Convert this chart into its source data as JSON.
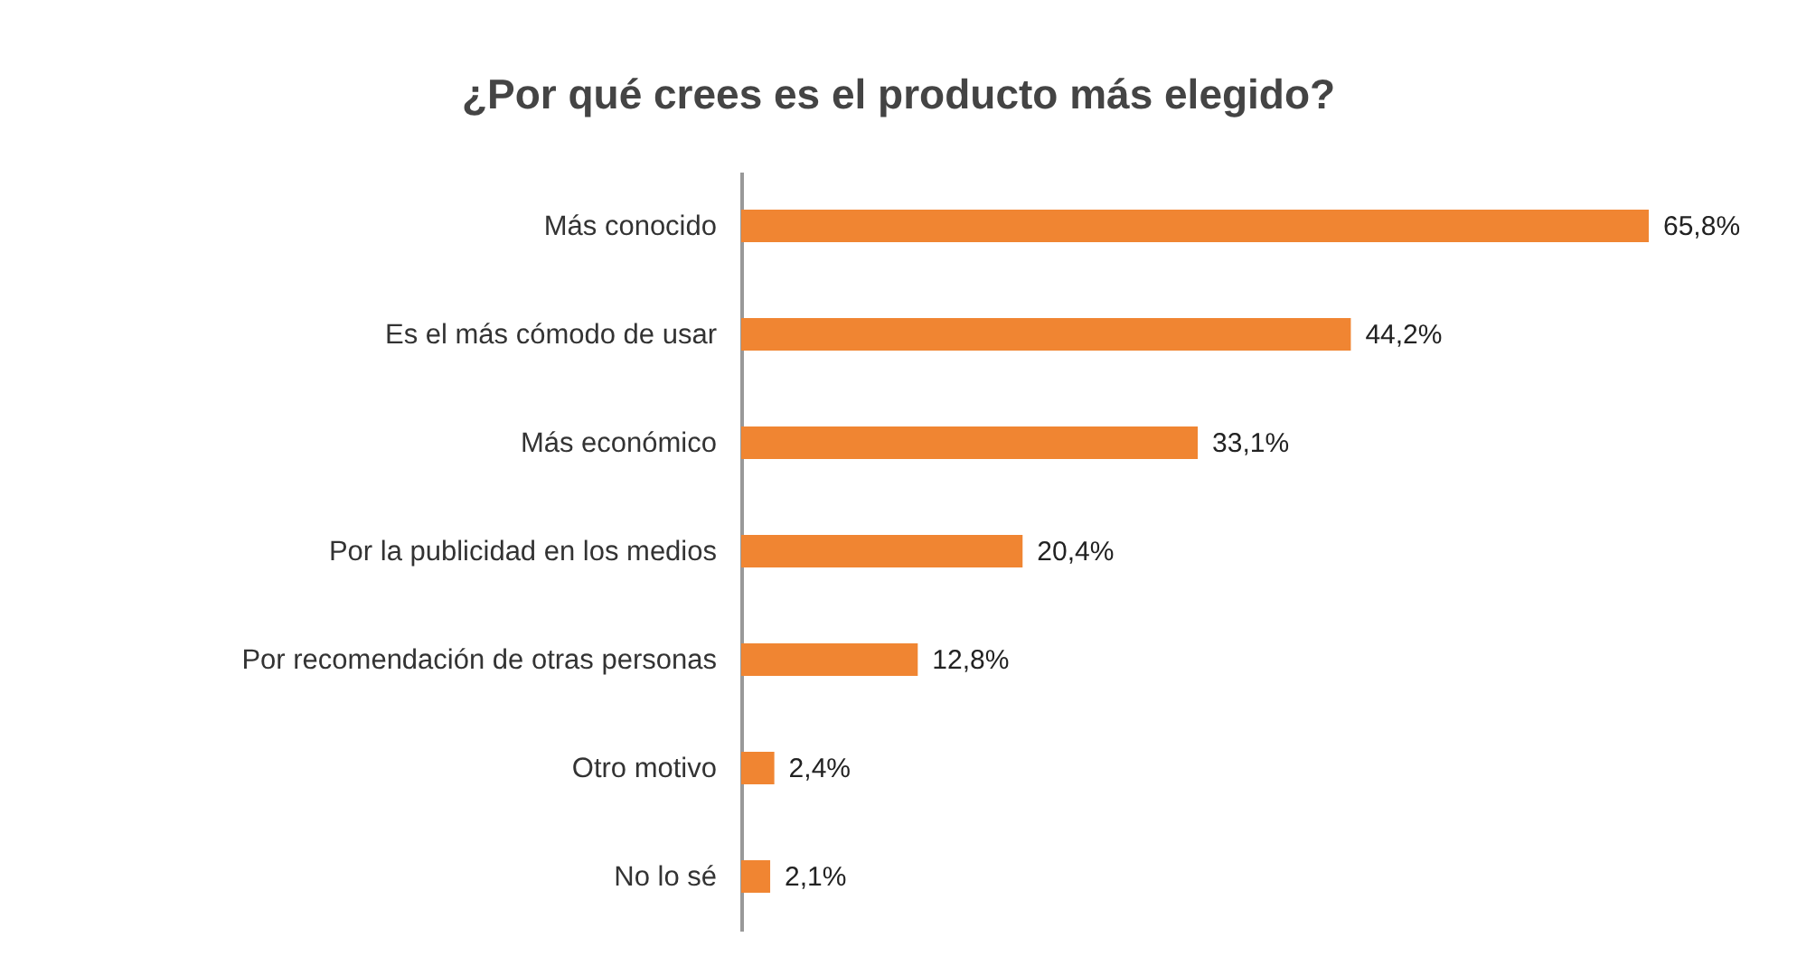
{
  "chart_data": {
    "type": "bar",
    "orientation": "horizontal",
    "title": "¿Por qué crees es el producto más elegido?",
    "categories": [
      "Más conocido",
      "Es el más cómodo de usar",
      "Más económico",
      "Por la publicidad en los medios",
      "Por recomendación de otras personas",
      "Otro motivo",
      "No lo sé"
    ],
    "values": [
      65.8,
      44.2,
      33.1,
      20.4,
      12.8,
      2.4,
      2.1
    ],
    "value_labels": [
      "65,8%",
      "44,2%",
      "33,1%",
      "20,4%",
      "12,8%",
      "2,4%",
      "2,1%"
    ],
    "color": "#f08532",
    "tick_labels": "y"
  }
}
